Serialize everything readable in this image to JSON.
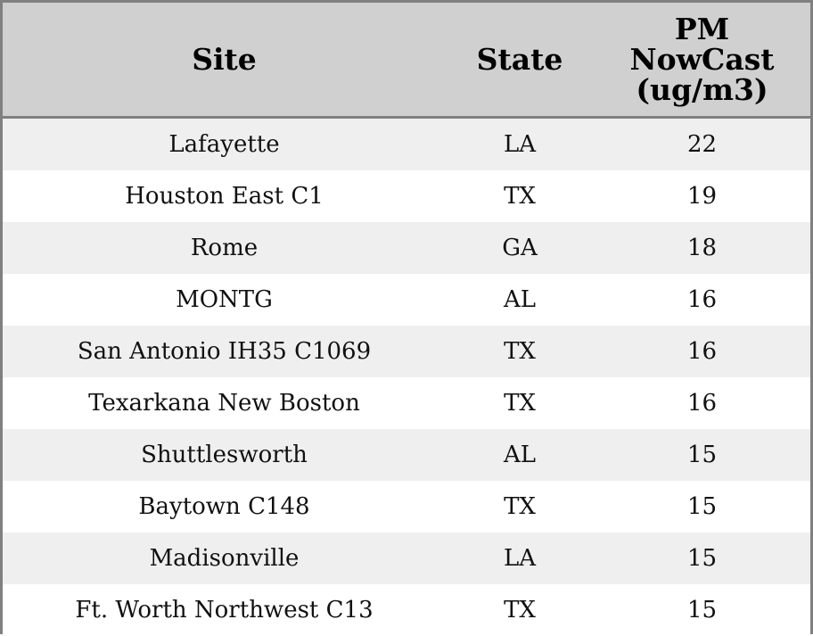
{
  "table": {
    "columns": [
      "Site",
      "State",
      "PM NowCast (ug/m3)"
    ],
    "rows": [
      [
        "Lafayette",
        "LA",
        22
      ],
      [
        "Houston East C1",
        "TX",
        19
      ],
      [
        "Rome",
        "GA",
        18
      ],
      [
        "MONTG",
        "AL",
        16
      ],
      [
        "San Antonio IH35 C1069",
        "TX",
        16
      ],
      [
        "Texarkana New Boston",
        "TX",
        16
      ],
      [
        "Shuttlesworth",
        "AL",
        15
      ],
      [
        "Baytown C148",
        "TX",
        15
      ],
      [
        "Madisonville",
        "LA",
        15
      ],
      [
        "Ft. Worth Northwest C13",
        "TX",
        15
      ]
    ]
  }
}
